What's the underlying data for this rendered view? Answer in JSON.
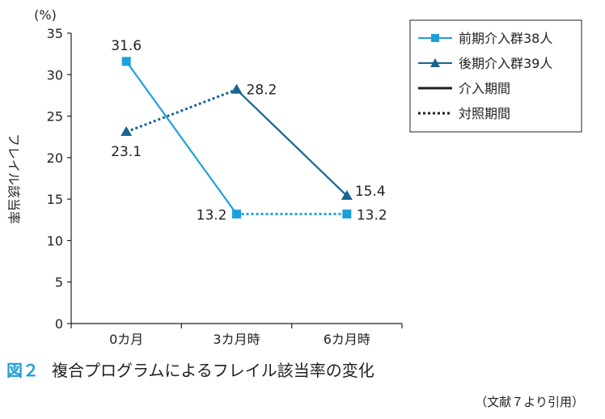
{
  "chart_data": {
    "type": "line",
    "categories": [
      "0カ月",
      "3カ月時",
      "6カ月時"
    ],
    "unit": "(%)",
    "ylabel": "フレイル該当率",
    "ylim": [
      0,
      35
    ],
    "yticks": [
      0,
      5,
      10,
      15,
      20,
      25,
      30,
      35
    ],
    "grid": false,
    "legend_position": "top-right",
    "series": [
      {
        "name": "前期介入群38人",
        "values": [
          31.6,
          13.2,
          13.2
        ],
        "labels": [
          "31.6",
          "13.2",
          "13.2"
        ],
        "color": "#1ea0dc",
        "marker": "square",
        "segment_styles": [
          "solid",
          "dotted"
        ]
      },
      {
        "name": "後期介入群39人",
        "values": [
          23.1,
          28.2,
          15.4
        ],
        "labels": [
          "23.1",
          "28.2",
          "15.4"
        ],
        "color": "#17668f",
        "marker": "triangle",
        "segment_styles": [
          "dotted",
          "solid"
        ]
      }
    ],
    "line_styles": [
      {
        "name": "介入期間",
        "style": "solid"
      },
      {
        "name": "対照期間",
        "style": "dotted"
      }
    ]
  },
  "caption": {
    "figure_label": "図２",
    "title": "複合プログラムによるフレイル該当率の変化"
  },
  "source": "（文献７より引用）"
}
